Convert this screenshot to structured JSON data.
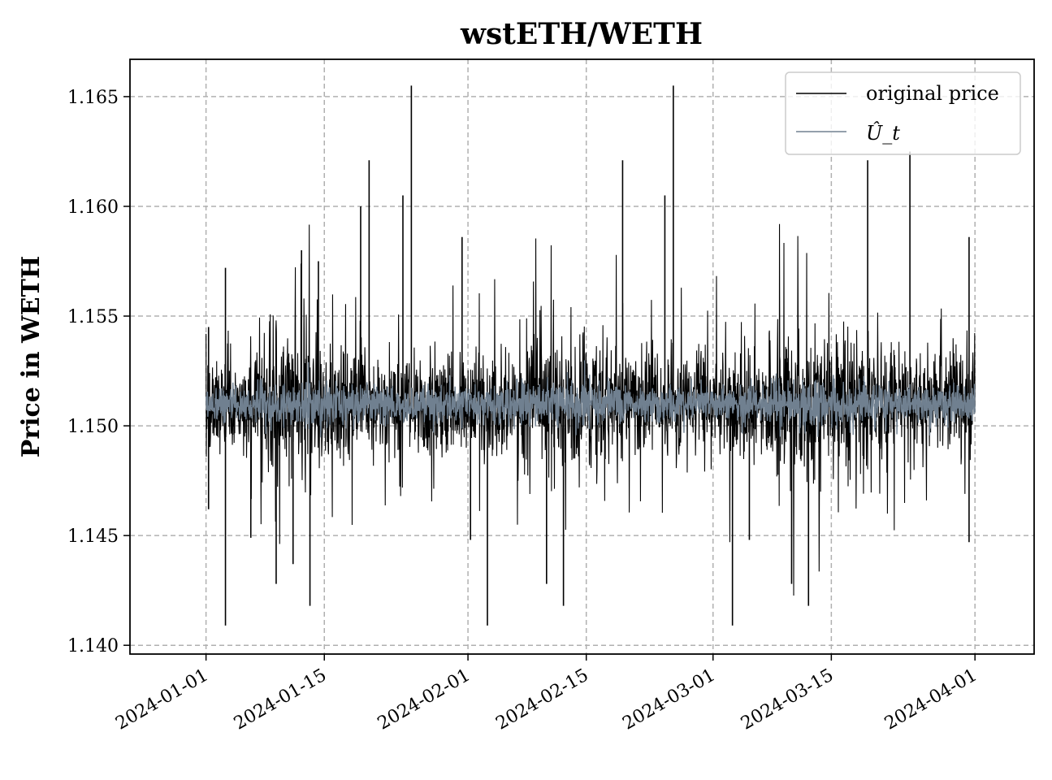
{
  "chart_data": {
    "type": "line",
    "title": "wstETH/WETH",
    "xlabel": "",
    "ylabel": "Price in WETH",
    "xlim": [
      "2023-12-23",
      "2024-04-08"
    ],
    "ylim": [
      1.1396,
      1.1667
    ],
    "x_ticks": [
      "2024-01-01",
      "2024-01-15",
      "2024-02-01",
      "2024-02-15",
      "2024-03-01",
      "2024-03-15",
      "2024-04-01"
    ],
    "y_ticks": [
      "1.140",
      "1.145",
      "1.150",
      "1.155",
      "1.160",
      "1.165"
    ],
    "grid": true,
    "legend_position": "upper-right",
    "x_range": [
      "2024-01-01",
      "2024-04-01"
    ],
    "series": [
      {
        "name": "original price",
        "color": "#000000",
        "baseline": 1.151,
        "spikes": [
          {
            "date": "2024-01-01",
            "value": 1.1545
          },
          {
            "date": "2024-01-01",
            "value": 1.1462
          },
          {
            "date": "2024-01-03",
            "value": 1.1409
          },
          {
            "date": "2024-01-03",
            "value": 1.1572
          },
          {
            "date": "2024-01-06",
            "value": 1.1449
          },
          {
            "date": "2024-01-09",
            "value": 1.1428
          },
          {
            "date": "2024-01-11",
            "value": 1.1437
          },
          {
            "date": "2024-01-12",
            "value": 1.158
          },
          {
            "date": "2024-01-13",
            "value": 1.1418
          },
          {
            "date": "2024-01-14",
            "value": 1.1575
          },
          {
            "date": "2024-01-19",
            "value": 1.16
          },
          {
            "date": "2024-01-20",
            "value": 1.1621
          },
          {
            "date": "2024-01-24",
            "value": 1.1605
          },
          {
            "date": "2024-01-25",
            "value": 1.1655
          },
          {
            "date": "2024-01-31",
            "value": 1.1586
          },
          {
            "date": "2024-02-01",
            "value": 1.1448
          },
          {
            "date": "2024-02-03",
            "value": 1.1409
          },
          {
            "date": "2024-02-10",
            "value": 1.1428
          },
          {
            "date": "2024-02-12",
            "value": 1.1418
          },
          {
            "date": "2024-02-19",
            "value": 1.1621
          },
          {
            "date": "2024-02-24",
            "value": 1.1605
          },
          {
            "date": "2024-02-25",
            "value": 1.1655
          },
          {
            "date": "2024-03-03",
            "value": 1.1409
          },
          {
            "date": "2024-03-05",
            "value": 1.1448
          },
          {
            "date": "2024-03-10",
            "value": 1.1428
          },
          {
            "date": "2024-03-12",
            "value": 1.1418
          },
          {
            "date": "2024-03-19",
            "value": 1.1621
          },
          {
            "date": "2024-03-24",
            "value": 1.1625
          },
          {
            "date": "2024-03-31",
            "value": 1.1586
          },
          {
            "date": "2024-03-31",
            "value": 1.1447
          }
        ]
      },
      {
        "name": "Û_t",
        "color": "#708090",
        "baseline": 1.151
      }
    ]
  }
}
